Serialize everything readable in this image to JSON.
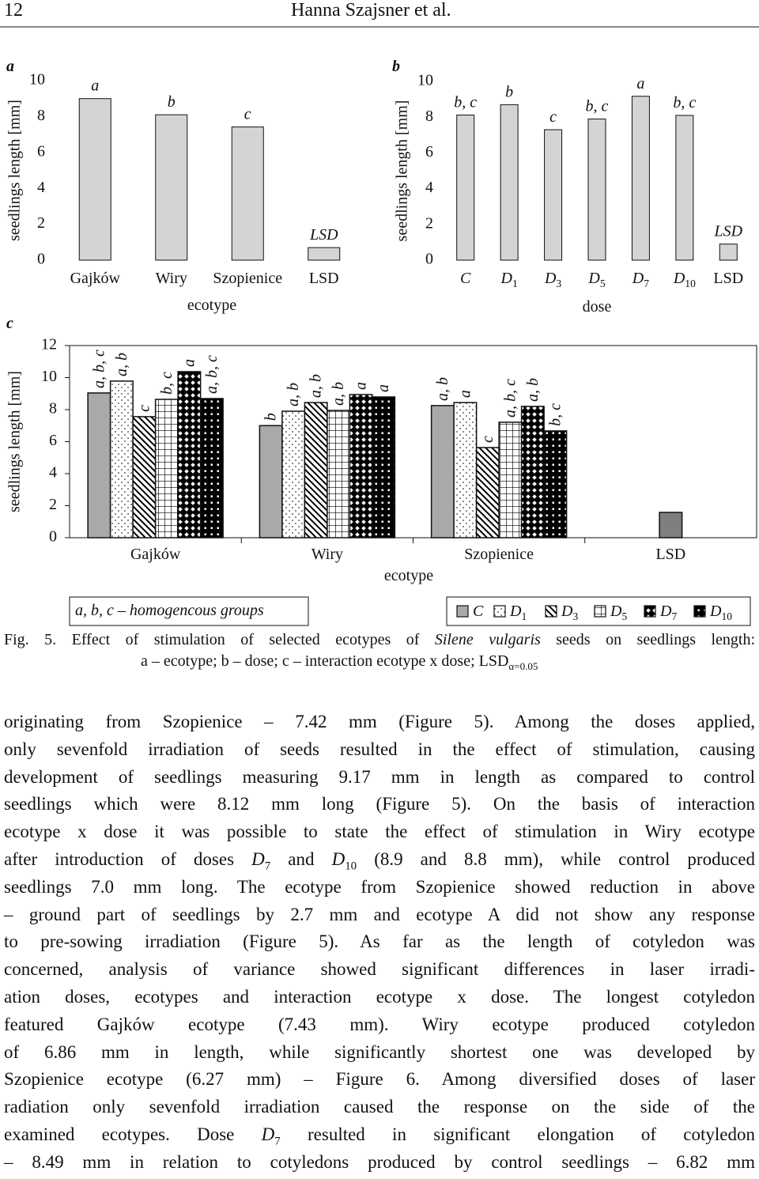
{
  "header": {
    "page_number": "12",
    "authors": "Hanna Szajsner et al."
  },
  "chart_data": [
    {
      "type": "bar",
      "panel": "a",
      "ylabel": "seedlings length [mm]",
      "xlabel": "ecotype",
      "categories": [
        "Gajków",
        "Wiry",
        "Szopienice",
        "LSD"
      ],
      "values": [
        9.0,
        8.1,
        7.42,
        0.7
      ],
      "group_labels": [
        "a",
        "b",
        "c",
        "LSD"
      ],
      "color": "#d4d4d4",
      "ylim": [
        0,
        10
      ],
      "yticks": [
        0,
        2,
        4,
        6,
        8,
        10
      ]
    },
    {
      "type": "bar",
      "panel": "b",
      "ylabel": "seedlings length [mm]",
      "xlabel": "dose",
      "categories": [
        "C",
        "D1",
        "D3",
        "D5",
        "D7",
        "D10",
        "LSD"
      ],
      "values": [
        8.12,
        8.7,
        7.3,
        7.9,
        9.17,
        8.1,
        0.9
      ],
      "group_labels": [
        "b, c",
        "b",
        "c",
        "b, c",
        "a",
        "b, c",
        "LSD"
      ],
      "color": "#d4d4d4",
      "ylim": [
        0,
        10
      ],
      "yticks": [
        0,
        2,
        4,
        6,
        8,
        10
      ]
    },
    {
      "type": "grouped_bar",
      "panel": "c",
      "ylabel": "seedlings length [mm]",
      "xlabel": "ecotype",
      "categories": [
        "Gajków",
        "Wiry",
        "Szopienice",
        "LSD"
      ],
      "series": [
        {
          "name": "C",
          "color": "#a9a9a9",
          "pattern": "solid",
          "values": [
            9.04,
            7.0,
            8.25,
            null
          ],
          "group_labels": [
            "a, b, c",
            "b",
            "a, b",
            null
          ]
        },
        {
          "name": "D1",
          "color": "#ffffff",
          "pattern": "dots",
          "values": [
            9.78,
            7.9,
            8.44,
            null
          ],
          "group_labels": [
            "a, b",
            "a, b",
            "a",
            null
          ]
        },
        {
          "name": "D3",
          "color": "#ffffff",
          "pattern": "diagonal",
          "values": [
            7.56,
            8.44,
            5.63,
            null
          ],
          "group_labels": [
            "c",
            "a, b",
            "c",
            null
          ]
        },
        {
          "name": "D5",
          "color": "#ffffff",
          "pattern": "grid",
          "values": [
            8.64,
            7.95,
            7.21,
            null
          ],
          "group_labels": [
            "b, c",
            "a, b",
            "a, b, c",
            null
          ]
        },
        {
          "name": "D7",
          "color": "#000000",
          "pattern": "diamonds",
          "values": [
            10.37,
            8.94,
            8.2,
            null
          ],
          "group_labels": [
            "a",
            "a",
            "a, b",
            null
          ]
        },
        {
          "name": "D10",
          "color": "#000000",
          "pattern": "spots",
          "values": [
            8.69,
            8.79,
            6.67,
            null
          ],
          "group_labels": [
            "a, b, c",
            "a",
            "b, c",
            null
          ]
        }
      ],
      "lsd": {
        "value": 1.58,
        "color": "#7f7f7f"
      },
      "ylim": [
        0,
        12
      ],
      "yticks": [
        0,
        2,
        4,
        6,
        8,
        10,
        12
      ]
    }
  ],
  "legend_note": "a, b, c – homogencous groups",
  "caption": {
    "label": "Fig. 5.",
    "text_start": "Effect of stimulation of selected ecotypes of",
    "species": "Silene vulgaris",
    "text_end": "seeds on seedlings length:",
    "line2": "a – ecotype; b – dose; c – interaction ecotype x dose; LSD",
    "line2_subscript": "α=0.05"
  },
  "body": [
    "originating from Szopienice – 7.42 mm (Figure 5). Among the doses applied,",
    "only sevenfold irradiation of seeds resulted in the effect of stimulation, causing",
    "development of seedlings measuring 9.17 mm in length as compared to control",
    "seedlings which were 8.12 mm long (Figure 5). On the basis of interaction",
    "ecotype x dose it was possible to state the effect of stimulation in Wiry ecotype",
    "after introduction of doses D7 and D10 (8.9 and 8.8 mm), while control produced",
    "seedlings 7.0 mm long. The ecotype from Szopienice showed reduction in above",
    "– ground part of seedlings by 2.7 mm and ecotype A did not show any response",
    "to pre-sowing irradiation (Figure 5). As far as the length of cotyledon was",
    "concerned, analysis of variance showed significant differences in laser irradi-",
    "ation doses, ecotypes and interaction ecotype x dose. The longest cotyledon",
    "featured Gajków ecotype (7.43 mm). Wiry ecotype produced cotyledon",
    "of 6.86 mm in length, while significantly shortest one was developed by",
    "Szopienice ecotype (6.27 mm) – Figure 6. Among diversified doses of laser",
    "radiation only sevenfold irradiation caused the response on the side of the",
    "examined ecotypes. Dose D7 resulted in significant elongation of cotyledon",
    "– 8.49 mm in relation to cotyledons produced by control seedlings – 6.82 mm"
  ]
}
